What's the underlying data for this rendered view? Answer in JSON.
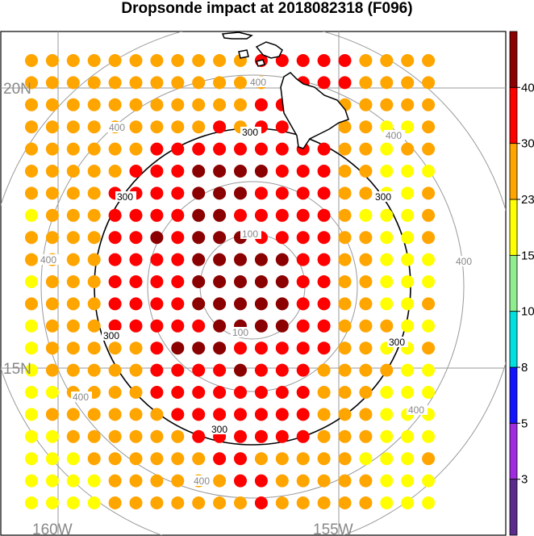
{
  "chart_data": {
    "type": "scatter",
    "title": "Dropsonde impact at 2018082318 (F096)",
    "lat_labels": [
      "20N",
      "15N"
    ],
    "lon_labels": [
      "160W",
      "155W"
    ],
    "range_ring_labels": [
      "100",
      "300",
      "400"
    ],
    "colorbar": {
      "levels": [
        "3",
        "5",
        "8",
        "10",
        "15",
        "23",
        "30",
        "40"
      ],
      "colors": [
        "#5b2c8c",
        "#a02ce0",
        "#1414ff",
        "#00e0e0",
        "#90ee90",
        "#ffff00",
        "#ffa500",
        "#ff0000",
        "#8b0000"
      ]
    },
    "grid": {
      "rows": 21,
      "cols": 20,
      "note_values": "impact category per grid point, 0=none, 1=yellow(15-23), 2=orange(23-30), 3=red(30-40), 4=dark red(>40)",
      "values": [
        "22222222222333332222",
        "22222222222203332222",
        "22222222222330022222",
        "22222222232333022112",
        "22222233333333322122",
        "22222333444433322111",
        "22223333444333322112",
        "12223333443333321112",
        "22223343444333322112",
        "22223333444443322111",
        "12223333444443322111",
        "22223333444443322112",
        "12223333344443322211",
        "12222234443333322112",
        "12222233334333222211",
        "11222233333333222111",
        "12222223333333222111",
        "11222222333333222111",
        "11122222233222221112",
        "11112222223322222111",
        "11112222222322222111"
      ]
    }
  }
}
